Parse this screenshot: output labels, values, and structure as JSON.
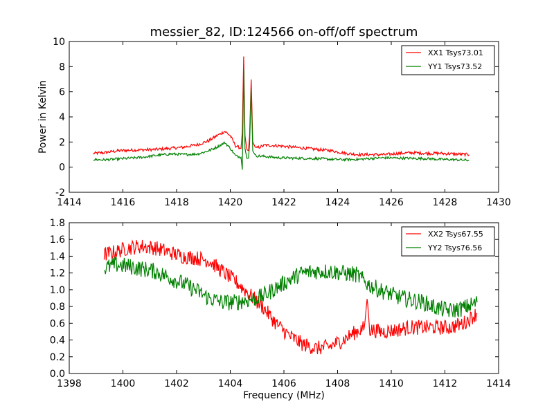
{
  "chart_data": [
    {
      "type": "line",
      "title": "messier_82, ID:124566 on-off/off spectrum",
      "xlabel": "",
      "ylabel": "Power in Kelvin",
      "xlim": [
        1414,
        1430
      ],
      "ylim": [
        -2,
        10
      ],
      "xticks": [
        1414,
        1416,
        1418,
        1420,
        1422,
        1424,
        1426,
        1428,
        1430
      ],
      "yticks": [
        -2,
        0,
        2,
        4,
        6,
        8,
        10
      ],
      "legend_position": "top-right",
      "grid": false,
      "series": [
        {
          "name": "XX1 Tsys73.01",
          "color": "#ff0000",
          "points": [
            [
              1414.9,
              1.1
            ],
            [
              1415.3,
              1.15
            ],
            [
              1415.8,
              1.3
            ],
            [
              1416.3,
              1.35
            ],
            [
              1416.8,
              1.38
            ],
            [
              1417.3,
              1.42
            ],
            [
              1417.8,
              1.5
            ],
            [
              1418.3,
              1.6
            ],
            [
              1418.8,
              1.8
            ],
            [
              1419.2,
              2.1
            ],
            [
              1419.5,
              2.5
            ],
            [
              1419.8,
              2.85
            ],
            [
              1420.0,
              2.5
            ],
            [
              1420.2,
              1.7
            ],
            [
              1420.4,
              1.5
            ],
            [
              1420.45,
              2.8
            ],
            [
              1420.5,
              8.8
            ],
            [
              1420.55,
              2.5
            ],
            [
              1420.62,
              1.4
            ],
            [
              1420.68,
              1.3
            ],
            [
              1420.72,
              2.5
            ],
            [
              1420.78,
              7.0
            ],
            [
              1420.84,
              2.0
            ],
            [
              1420.95,
              1.5
            ],
            [
              1421.3,
              1.75
            ],
            [
              1421.8,
              1.7
            ],
            [
              1422.3,
              1.6
            ],
            [
              1422.8,
              1.5
            ],
            [
              1423.3,
              1.4
            ],
            [
              1423.8,
              1.3
            ],
            [
              1424.3,
              1.1
            ],
            [
              1424.8,
              1.0
            ],
            [
              1425.3,
              1.0
            ],
            [
              1425.8,
              1.0
            ],
            [
              1426.3,
              1.1
            ],
            [
              1426.8,
              1.15
            ],
            [
              1427.3,
              1.1
            ],
            [
              1427.8,
              1.1
            ],
            [
              1428.3,
              1.05
            ],
            [
              1428.9,
              1.0
            ]
          ]
        },
        {
          "name": "YY1 Tsys73.52",
          "color": "#008000",
          "points": [
            [
              1414.9,
              0.6
            ],
            [
              1415.3,
              0.58
            ],
            [
              1415.8,
              0.65
            ],
            [
              1416.3,
              0.72
            ],
            [
              1416.8,
              0.8
            ],
            [
              1417.3,
              0.95
            ],
            [
              1417.8,
              1.05
            ],
            [
              1418.3,
              1.0
            ],
            [
              1418.8,
              1.05
            ],
            [
              1419.2,
              1.3
            ],
            [
              1419.5,
              1.6
            ],
            [
              1419.8,
              1.95
            ],
            [
              1420.0,
              1.5
            ],
            [
              1420.2,
              0.9
            ],
            [
              1420.4,
              0.8
            ],
            [
              1420.45,
              -0.2
            ],
            [
              1420.5,
              7.8
            ],
            [
              1420.55,
              1.5
            ],
            [
              1420.62,
              0.7
            ],
            [
              1420.68,
              0.7
            ],
            [
              1420.72,
              1.8
            ],
            [
              1420.78,
              6.2
            ],
            [
              1420.84,
              1.3
            ],
            [
              1420.95,
              0.9
            ],
            [
              1421.3,
              0.85
            ],
            [
              1421.8,
              0.75
            ],
            [
              1422.3,
              0.72
            ],
            [
              1422.8,
              0.7
            ],
            [
              1423.3,
              0.68
            ],
            [
              1423.8,
              0.62
            ],
            [
              1424.3,
              0.6
            ],
            [
              1424.8,
              0.62
            ],
            [
              1425.3,
              0.7
            ],
            [
              1425.8,
              0.75
            ],
            [
              1426.3,
              0.72
            ],
            [
              1426.8,
              0.7
            ],
            [
              1427.3,
              0.68
            ],
            [
              1427.8,
              0.62
            ],
            [
              1428.3,
              0.6
            ],
            [
              1428.9,
              0.55
            ]
          ]
        }
      ]
    },
    {
      "type": "line",
      "title": "",
      "xlabel": "Frequency (MHz)",
      "ylabel": "",
      "xlim": [
        1398,
        1414
      ],
      "ylim": [
        0.0,
        1.8
      ],
      "xticks": [
        1398,
        1400,
        1402,
        1404,
        1406,
        1408,
        1410,
        1412,
        1414
      ],
      "yticks": [
        "0.0",
        "0.2",
        "0.4",
        "0.6",
        "0.8",
        "1.0",
        "1.2",
        "1.4",
        "1.6",
        "1.8"
      ],
      "legend_position": "top-right",
      "grid": false,
      "series": [
        {
          "name": "XX2 Tsys67.55",
          "color": "#ff0000",
          "points": [
            [
              1399.3,
              1.42
            ],
            [
              1399.7,
              1.45
            ],
            [
              1400.2,
              1.5
            ],
            [
              1400.7,
              1.52
            ],
            [
              1401.2,
              1.5
            ],
            [
              1401.7,
              1.45
            ],
            [
              1402.2,
              1.4
            ],
            [
              1402.7,
              1.38
            ],
            [
              1403.2,
              1.35
            ],
            [
              1403.7,
              1.22
            ],
            [
              1404.2,
              1.1
            ],
            [
              1404.7,
              0.95
            ],
            [
              1405.2,
              0.8
            ],
            [
              1405.7,
              0.6
            ],
            [
              1406.2,
              0.45
            ],
            [
              1406.7,
              0.35
            ],
            [
              1407.2,
              0.3
            ],
            [
              1407.7,
              0.32
            ],
            [
              1408.2,
              0.4
            ],
            [
              1408.7,
              0.5
            ],
            [
              1409.0,
              0.55
            ],
            [
              1409.1,
              0.9
            ],
            [
              1409.2,
              0.52
            ],
            [
              1409.7,
              0.5
            ],
            [
              1410.2,
              0.52
            ],
            [
              1410.7,
              0.55
            ],
            [
              1411.2,
              0.55
            ],
            [
              1411.7,
              0.55
            ],
            [
              1412.2,
              0.55
            ],
            [
              1412.7,
              0.6
            ],
            [
              1413.2,
              0.72
            ]
          ]
        },
        {
          "name": "YY2 Tsys76.56",
          "color": "#008000",
          "points": [
            [
              1399.3,
              1.25
            ],
            [
              1399.7,
              1.3
            ],
            [
              1400.2,
              1.28
            ],
            [
              1400.7,
              1.25
            ],
            [
              1401.2,
              1.22
            ],
            [
              1401.7,
              1.15
            ],
            [
              1402.2,
              1.08
            ],
            [
              1402.7,
              1.0
            ],
            [
              1403.2,
              0.9
            ],
            [
              1403.7,
              0.85
            ],
            [
              1404.2,
              0.85
            ],
            [
              1404.7,
              0.88
            ],
            [
              1405.2,
              0.92
            ],
            [
              1405.7,
              1.02
            ],
            [
              1406.2,
              1.12
            ],
            [
              1406.7,
              1.2
            ],
            [
              1407.2,
              1.22
            ],
            [
              1407.7,
              1.22
            ],
            [
              1408.2,
              1.2
            ],
            [
              1408.7,
              1.18
            ],
            [
              1409.2,
              1.05
            ],
            [
              1409.7,
              0.98
            ],
            [
              1410.2,
              0.92
            ],
            [
              1410.7,
              0.88
            ],
            [
              1411.2,
              0.85
            ],
            [
              1411.7,
              0.78
            ],
            [
              1412.2,
              0.75
            ],
            [
              1412.7,
              0.78
            ],
            [
              1413.2,
              0.85
            ]
          ]
        }
      ]
    }
  ]
}
